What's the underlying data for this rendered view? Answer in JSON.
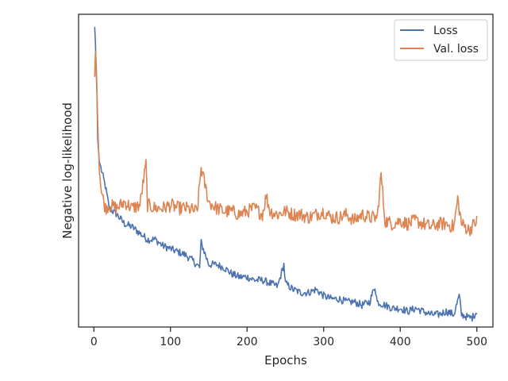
{
  "chart_data": {
    "type": "line",
    "title": "",
    "xlabel": "Epochs",
    "ylabel": "Negative log-likelihood",
    "xlim": [
      -20,
      521
    ],
    "ylim": [
      0,
      1
    ],
    "x_ticks": [
      0,
      100,
      200,
      300,
      400,
      500
    ],
    "y_ticks": [],
    "grid": false,
    "legend_position": "top-right",
    "series": [
      {
        "name": "Loss",
        "color": "#4c72b0",
        "x": [
          1,
          2,
          4,
          5,
          7,
          10,
          15,
          20,
          30,
          40,
          50,
          60,
          70,
          80,
          90,
          100,
          110,
          120,
          130,
          138,
          140,
          150,
          160,
          170,
          180,
          190,
          200,
          210,
          220,
          230,
          240,
          248,
          250,
          260,
          270,
          280,
          290,
          300,
          310,
          320,
          330,
          340,
          350,
          360,
          367,
          370,
          380,
          390,
          400,
          410,
          420,
          430,
          440,
          450,
          460,
          470,
          477,
          480,
          490,
          494,
          500
        ],
        "values": [
          0.96,
          0.91,
          0.74,
          0.6,
          0.53,
          0.5,
          0.45,
          0.38,
          0.36,
          0.33,
          0.32,
          0.3,
          0.28,
          0.28,
          0.26,
          0.25,
          0.24,
          0.23,
          0.21,
          0.19,
          0.27,
          0.2,
          0.2,
          0.19,
          0.17,
          0.16,
          0.16,
          0.15,
          0.15,
          0.14,
          0.13,
          0.2,
          0.14,
          0.12,
          0.11,
          0.11,
          0.12,
          0.1,
          0.09,
          0.09,
          0.08,
          0.08,
          0.07,
          0.08,
          0.13,
          0.08,
          0.07,
          0.06,
          0.06,
          0.05,
          0.06,
          0.05,
          0.04,
          0.04,
          0.05,
          0.04,
          0.1,
          0.04,
          0.03,
          0.03,
          0.05
        ]
      },
      {
        "name": "Val. loss",
        "color": "#dd8452",
        "x": [
          1,
          2,
          3,
          5,
          7,
          10,
          15,
          20,
          30,
          40,
          50,
          60,
          68,
          70,
          80,
          90,
          100,
          110,
          120,
          135,
          140,
          150,
          160,
          170,
          180,
          190,
          200,
          210,
          220,
          225,
          230,
          240,
          250,
          260,
          270,
          280,
          290,
          300,
          310,
          320,
          330,
          340,
          350,
          360,
          370,
          375,
          380,
          390,
          400,
          410,
          420,
          430,
          440,
          450,
          460,
          470,
          475,
          480,
          490,
          500
        ],
        "values": [
          0.8,
          0.88,
          0.85,
          0.66,
          0.5,
          0.43,
          0.38,
          0.39,
          0.38,
          0.4,
          0.38,
          0.39,
          0.52,
          0.39,
          0.38,
          0.38,
          0.39,
          0.38,
          0.38,
          0.37,
          0.51,
          0.4,
          0.38,
          0.37,
          0.37,
          0.36,
          0.37,
          0.38,
          0.36,
          0.42,
          0.37,
          0.36,
          0.37,
          0.36,
          0.36,
          0.35,
          0.36,
          0.37,
          0.35,
          0.35,
          0.36,
          0.34,
          0.36,
          0.35,
          0.35,
          0.49,
          0.34,
          0.33,
          0.34,
          0.33,
          0.34,
          0.33,
          0.32,
          0.33,
          0.33,
          0.32,
          0.41,
          0.33,
          0.31,
          0.34
        ]
      }
    ]
  }
}
